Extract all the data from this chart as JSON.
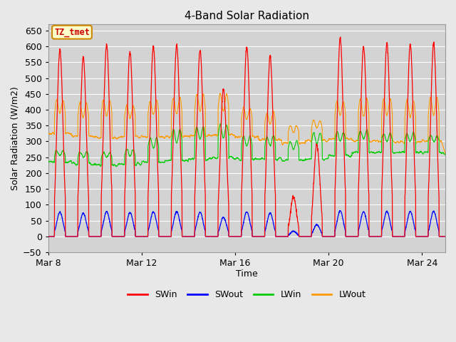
{
  "title": "4-Band Solar Radiation",
  "xlabel": "Time",
  "ylabel": "Solar Radiation (W/m2)",
  "ylim": [
    -50,
    670
  ],
  "yticks": [
    -50,
    0,
    50,
    100,
    150,
    200,
    250,
    300,
    350,
    400,
    450,
    500,
    550,
    600,
    650
  ],
  "xtick_labels": [
    "Mar 8",
    "Mar 12",
    "Mar 16",
    "Mar 20",
    "Mar 24"
  ],
  "xtick_pos": [
    0,
    4,
    8,
    12,
    16
  ],
  "xlim": [
    0,
    17
  ],
  "fig_bg_color": "#e8e8e8",
  "plot_bg_color": "#d3d3d3",
  "grid_color": "#ffffff",
  "legend_labels": [
    "SWin",
    "SWout",
    "LWin",
    "LWout"
  ],
  "legend_colors": [
    "#ff0000",
    "#0000ff",
    "#00cc00",
    "#ff9900"
  ],
  "annotation_text": "TZ_tmet",
  "annotation_bg": "#ffffcc",
  "annotation_border": "#cc8800",
  "annotation_text_color": "#cc0000",
  "title_fontsize": 11,
  "axis_label_fontsize": 9,
  "tick_fontsize": 9
}
